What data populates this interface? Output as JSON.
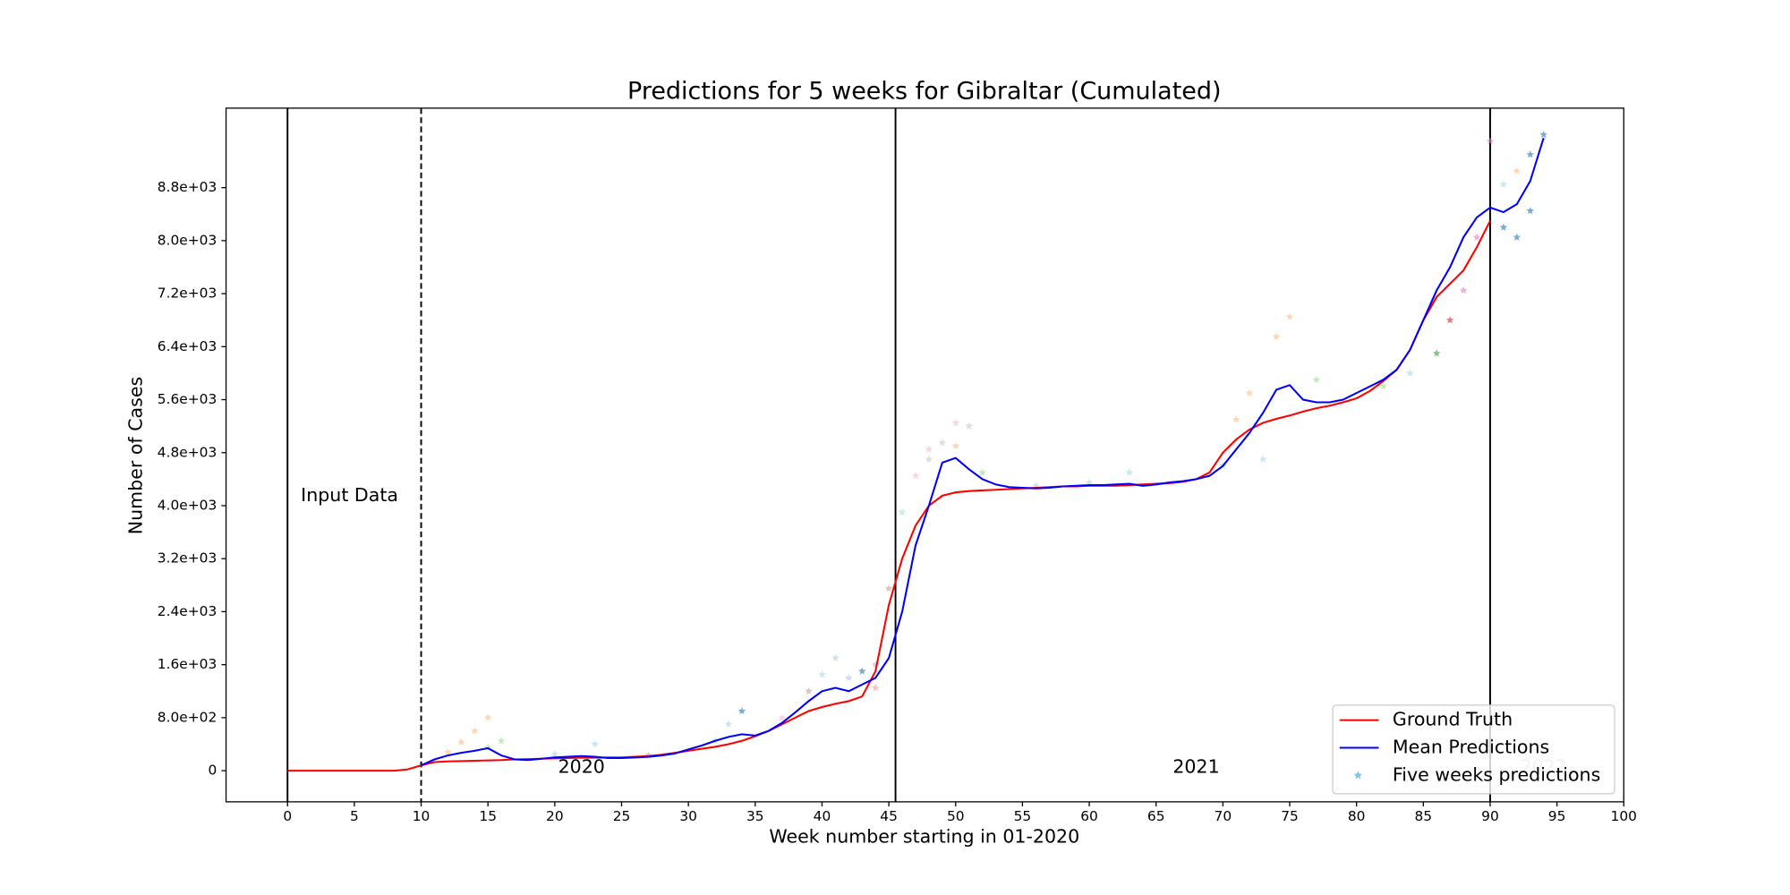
{
  "chart_data": {
    "type": "line",
    "title": "Predictions for 5 weeks for Gibraltar (Cumulated)",
    "xlabel": "Week number starting in 01-2020",
    "ylabel": "Number of Cases",
    "xlim": [
      -4.6,
      100
    ],
    "ylim": [
      -470,
      10000
    ],
    "xticks": [
      0,
      5,
      10,
      15,
      20,
      25,
      30,
      35,
      40,
      45,
      50,
      55,
      60,
      65,
      70,
      75,
      80,
      85,
      90,
      95,
      100
    ],
    "yticks": [
      0,
      {
        "value": 800,
        "label": "8.0e+02"
      },
      {
        "value": 1600,
        "label": "1.6e+03"
      },
      {
        "value": 2400,
        "label": "2.4e+03"
      },
      {
        "value": 3200,
        "label": "3.2e+03"
      },
      {
        "value": 4000,
        "label": "4.0e+03"
      },
      {
        "value": 4800,
        "label": "4.8e+03"
      },
      {
        "value": 5600,
        "label": "5.6e+03"
      },
      {
        "value": 6400,
        "label": "6.4e+03"
      },
      {
        "value": 7200,
        "label": "7.2e+03"
      },
      {
        "value": 8000,
        "label": "8.0e+03"
      },
      {
        "value": 8800,
        "label": "8.8e+03"
      }
    ],
    "legend": "lower right",
    "vlines": [
      {
        "x": 0,
        "style": "solid"
      },
      {
        "x": 10,
        "style": "dashed"
      },
      {
        "x": 45.5,
        "style": "solid"
      },
      {
        "x": 90,
        "style": "solid"
      }
    ],
    "annotations": [
      {
        "text": "Input Data",
        "color": "#000000"
      },
      {
        "text": "2020",
        "color": "#000000"
      },
      {
        "text": "2021",
        "color": "#000000"
      },
      {
        "text": "2022",
        "color": "#bbbbbb"
      }
    ],
    "series": [
      {
        "name": "Ground Truth",
        "color": "#ff0000",
        "kind": "line",
        "x": [
          0,
          1,
          2,
          3,
          4,
          5,
          6,
          7,
          8,
          9,
          10,
          11,
          12,
          13,
          14,
          15,
          16,
          17,
          18,
          19,
          20,
          21,
          22,
          23,
          24,
          25,
          26,
          27,
          28,
          29,
          30,
          31,
          32,
          33,
          34,
          35,
          36,
          37,
          38,
          39,
          40,
          41,
          42,
          43,
          44,
          45,
          46,
          47,
          48,
          49,
          50,
          51,
          52,
          53,
          54,
          55,
          56,
          57,
          58,
          59,
          60,
          61,
          62,
          63,
          64,
          65,
          66,
          67,
          68,
          69,
          70,
          71,
          72,
          73,
          74,
          75,
          76,
          77,
          78,
          79,
          80,
          81,
          82,
          83,
          84,
          85,
          86,
          87,
          88,
          89,
          90
        ],
        "values": [
          0,
          0,
          0,
          0,
          0,
          0,
          0,
          0,
          0,
          20,
          80,
          130,
          140,
          145,
          150,
          155,
          160,
          170,
          175,
          180,
          185,
          190,
          195,
          195,
          200,
          200,
          210,
          220,
          240,
          270,
          300,
          330,
          360,
          400,
          450,
          520,
          600,
          700,
          800,
          900,
          960,
          1010,
          1050,
          1120,
          1500,
          2500,
          3200,
          3700,
          4000,
          4150,
          4200,
          4220,
          4230,
          4240,
          4250,
          4260,
          4270,
          4280,
          4290,
          4290,
          4300,
          4300,
          4300,
          4310,
          4320,
          4330,
          4340,
          4360,
          4400,
          4500,
          4800,
          5000,
          5150,
          5250,
          5310,
          5360,
          5420,
          5470,
          5510,
          5560,
          5620,
          5730,
          5880,
          6050,
          6350,
          6800,
          7150,
          7350,
          7550,
          7900,
          8300
        ]
      },
      {
        "name": "Mean Predictions",
        "color": "#0000ff",
        "kind": "line",
        "x": [
          10,
          11,
          12,
          13,
          14,
          15,
          16,
          17,
          18,
          19,
          20,
          21,
          22,
          23,
          24,
          25,
          26,
          27,
          28,
          29,
          30,
          31,
          32,
          33,
          34,
          35,
          36,
          37,
          38,
          39,
          40,
          41,
          42,
          43,
          44,
          45,
          46,
          47,
          48,
          49,
          50,
          51,
          52,
          53,
          54,
          55,
          56,
          57,
          58,
          59,
          60,
          61,
          62,
          63,
          64,
          65,
          66,
          67,
          68,
          69,
          70,
          71,
          72,
          73,
          74,
          75,
          76,
          77,
          78,
          79,
          80,
          81,
          82,
          83,
          84,
          85,
          86,
          87,
          88,
          89,
          90,
          91,
          92,
          93,
          94
        ],
        "values": [
          80,
          170,
          230,
          270,
          300,
          340,
          230,
          170,
          160,
          180,
          200,
          210,
          220,
          210,
          190,
          190,
          200,
          210,
          230,
          260,
          320,
          380,
          450,
          510,
          550,
          530,
          600,
          720,
          880,
          1050,
          1200,
          1250,
          1200,
          1300,
          1400,
          1700,
          2400,
          3400,
          4000,
          4650,
          4720,
          4550,
          4400,
          4320,
          4280,
          4270,
          4260,
          4270,
          4290,
          4300,
          4310,
          4310,
          4320,
          4330,
          4300,
          4320,
          4350,
          4370,
          4400,
          4450,
          4600,
          4850,
          5100,
          5400,
          5750,
          5820,
          5600,
          5560,
          5560,
          5600,
          5700,
          5800,
          5900,
          6050,
          6350,
          6800,
          7250,
          7600,
          8050,
          8350,
          8500,
          8430,
          8550,
          8900,
          9550
        ]
      },
      {
        "name": "Five weeks predictions",
        "color": "#7ec8e3",
        "kind": "scatter",
        "x": [
          12,
          13,
          14,
          15,
          15,
          16,
          20,
          23,
          27,
          32,
          33,
          34,
          37,
          39,
          40,
          41,
          42,
          43,
          44,
          44,
          45,
          46,
          47,
          48,
          48,
          49,
          50,
          50,
          51,
          52,
          56,
          60,
          63,
          70,
          71,
          72,
          73,
          74,
          75,
          77,
          82,
          84,
          86,
          87,
          88,
          89,
          90,
          91,
          91,
          92,
          92,
          93,
          93,
          94
        ],
        "values": [
          280,
          430,
          600,
          800,
          350,
          450,
          250,
          400,
          230,
          450,
          700,
          900,
          800,
          1200,
          1450,
          1700,
          1400,
          1500,
          1250,
          1600,
          2750,
          3900,
          4450,
          4850,
          4700,
          4950,
          5250,
          4900,
          5200,
          4500,
          4300,
          4350,
          4500,
          4600,
          5300,
          5700,
          4700,
          6550,
          6850,
          5900,
          5800,
          6000,
          6300,
          6800,
          7250,
          8050,
          9500,
          8200,
          8850,
          8050,
          9050,
          8450,
          9300,
          9600
        ],
        "colors": [
          "#ffbb78",
          "#ffbb78",
          "#ffbb78",
          "#ffbb78",
          "#98df8a",
          "#98df8a",
          "#9edae5",
          "#9edae5",
          "#c49c94",
          "#9edae5",
          "#9edae5",
          "#1f77b4",
          "#f7b6d2",
          "#c49c94",
          "#9edae5",
          "#aec7e8",
          "#aec7e8",
          "#1f77b4",
          "#ff9896",
          "#c5b0d5",
          "#c49c94",
          "#9edae5",
          "#f7b6d2",
          "#f7b6d2",
          "#c7c7c7",
          "#c7c7c7",
          "#f7b6d2",
          "#ffbb78",
          "#c7c7c7",
          "#98df8a",
          "#9edae5",
          "#9edae5",
          "#9edae5",
          "#98df8a",
          "#ffbb78",
          "#ffbb78",
          "#9edae5",
          "#ffbb78",
          "#ffbb78",
          "#98df8a",
          "#98df8a",
          "#9edae5",
          "#2ca02c",
          "#d62728",
          "#e377c2",
          "#e377c2",
          "#e377c2",
          "#1f77b4",
          "#9edae5",
          "#1f77b4",
          "#ffbb78",
          "#1f77b4",
          "#1f77b4",
          "#1f77b4"
        ]
      }
    ]
  }
}
